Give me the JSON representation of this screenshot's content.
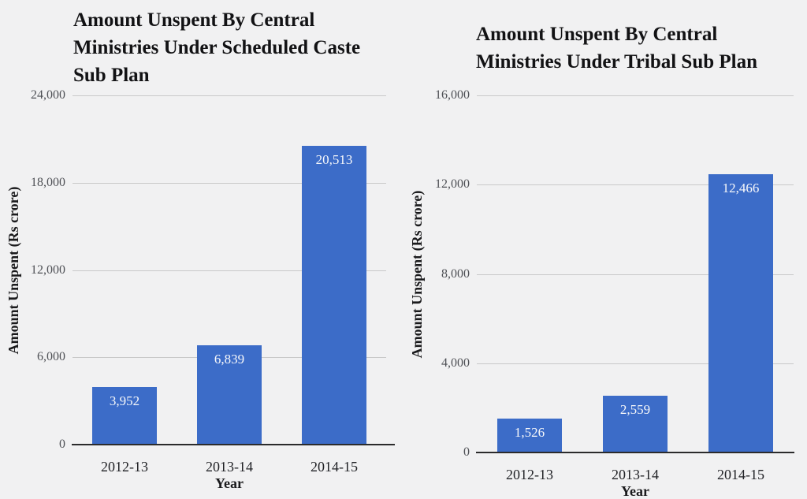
{
  "page": {
    "background_color": "#f1f1f2",
    "gridline_color": "#c9c9c9",
    "axis_line_color": "#2b2b2c"
  },
  "chart_data": [
    {
      "type": "bar",
      "title": "Amount Unspent By Central Ministries Under Scheduled Caste Sub Plan",
      "title_lines": [
        "Amount Unspent By Central",
        "Ministries Under Scheduled Caste",
        "Sub Plan"
      ],
      "xlabel": "Year",
      "ylabel": "Amount Unspent (Rs crore)",
      "categories": [
        "2012-13",
        "2013-14",
        "2014-15"
      ],
      "values": [
        3952,
        6839,
        20513
      ],
      "value_labels": [
        "3,952",
        "6,839",
        "20,513"
      ],
      "ylim": [
        0,
        24000
      ],
      "yticks": [
        {
          "value": 0,
          "label": "0"
        },
        {
          "value": 6000,
          "label": "6,000"
        },
        {
          "value": 12000,
          "label": "12,000"
        },
        {
          "value": 18000,
          "label": "18,000"
        },
        {
          "value": 24000,
          "label": "24,000"
        }
      ],
      "bar_color": "#3c6cc8",
      "value_label_color": "#f7f8fa",
      "grid": true,
      "legend": "none"
    },
    {
      "type": "bar",
      "title": "Amount Unspent By Central Ministries Under Tribal Sub Plan",
      "title_lines": [
        "Amount Unspent By Central",
        "Ministries Under Tribal Sub Plan"
      ],
      "xlabel": "Year",
      "ylabel": "Amount Unspent (Rs crore)",
      "categories": [
        "2012-13",
        "2013-14",
        "2014-15"
      ],
      "values": [
        1526,
        2559,
        12466
      ],
      "value_labels": [
        "1,526",
        "2,559",
        "12,466"
      ],
      "ylim": [
        0,
        16000
      ],
      "yticks": [
        {
          "value": 0,
          "label": "0"
        },
        {
          "value": 4000,
          "label": "4,000"
        },
        {
          "value": 8000,
          "label": "8,000"
        },
        {
          "value": 12000,
          "label": "12,000"
        },
        {
          "value": 16000,
          "label": "16,000"
        }
      ],
      "bar_color": "#3c6cc8",
      "value_label_color": "#f7f8fa",
      "grid": true,
      "legend": "none"
    }
  ]
}
